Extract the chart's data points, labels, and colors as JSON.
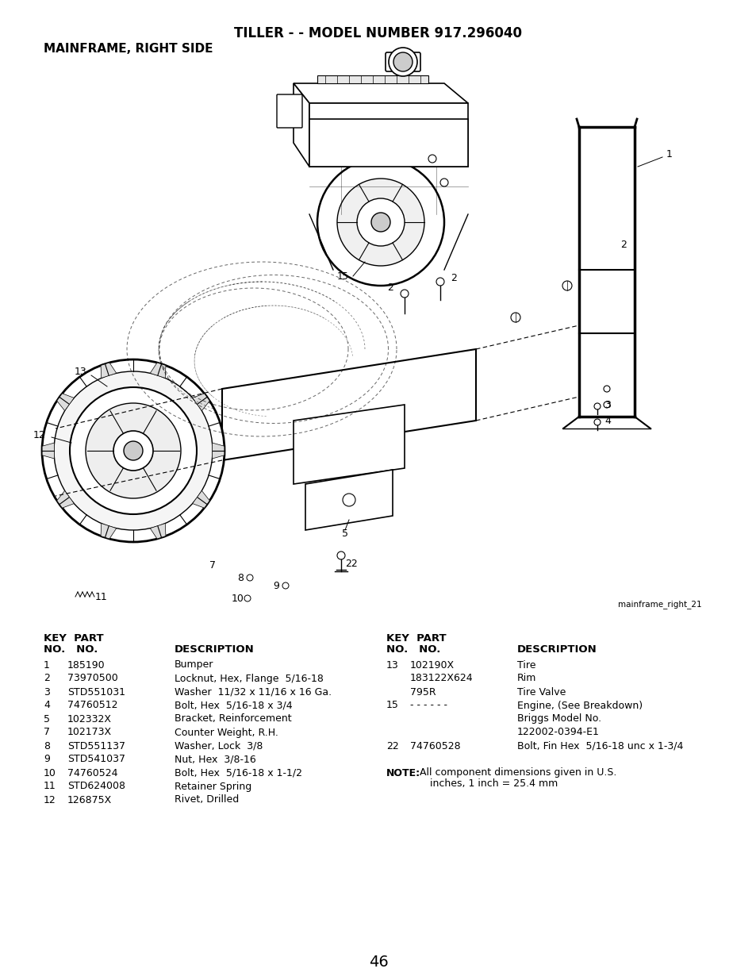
{
  "title_line1": "TILLER - - MODEL NUMBER 917.296040",
  "title_line2": "MAINFRAME, RIGHT SIDE",
  "image_credit": "mainframe_right_21",
  "page_number": "46",
  "bg_color": "#ffffff",
  "left_parts": [
    [
      "1",
      "185190",
      "Bumper"
    ],
    [
      "2",
      "73970500",
      "Locknut, Hex, Flange  5/16-18"
    ],
    [
      "3",
      "STD551031",
      "Washer  11/32 x 11/16 x 16 Ga."
    ],
    [
      "4",
      "74760512",
      "Bolt, Hex  5/16-18 x 3/4"
    ],
    [
      "5",
      "102332X",
      "Bracket, Reinforcement"
    ],
    [
      "7",
      "102173X",
      "Counter Weight, R.H."
    ],
    [
      "8",
      "STD551137",
      "Washer, Lock  3/8"
    ],
    [
      "9",
      "STD541037",
      "Nut, Hex  3/8-16"
    ],
    [
      "10",
      "74760524",
      "Bolt, Hex  5/16-18 x 1-1/2"
    ],
    [
      "11",
      "STD624008",
      "Retainer Spring"
    ],
    [
      "12",
      "126875X",
      "Rivet, Drilled"
    ]
  ],
  "right_parts": [
    [
      "13",
      "102190X",
      "Tire"
    ],
    [
      "",
      "183122X624",
      "Rim"
    ],
    [
      "",
      "795R",
      "Tire Valve"
    ],
    [
      "15",
      "- - - - - -",
      "Engine, (See Breakdown)"
    ],
    [
      "",
      "",
      "Briggs Model No."
    ],
    [
      "",
      "",
      "122002-0394-E1"
    ],
    [
      "22",
      "74760528",
      "Bolt, Fin Hex  5/16-18 unc x 1-3/4"
    ]
  ]
}
